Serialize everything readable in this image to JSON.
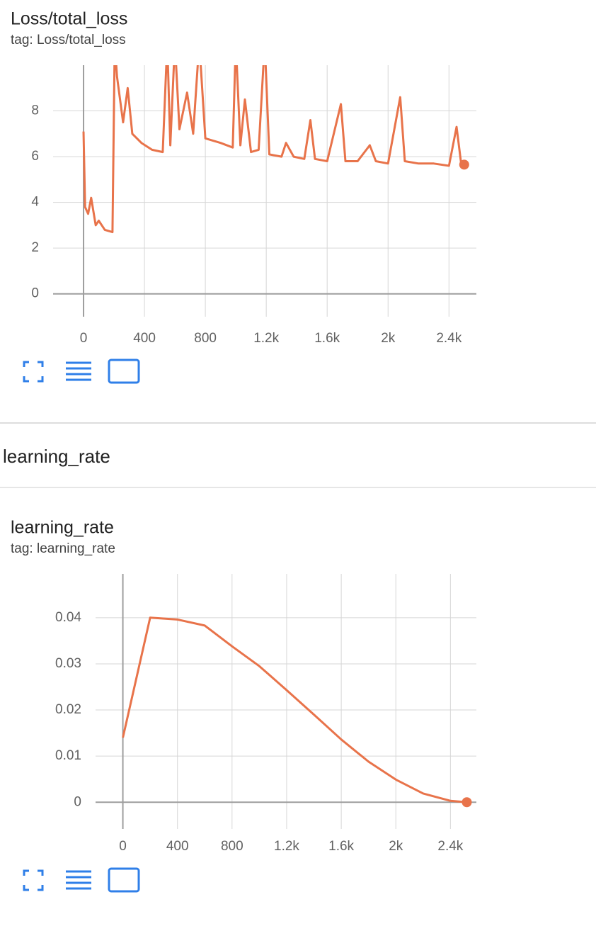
{
  "section": {
    "title": "learning_rate"
  },
  "chart_data": [
    {
      "type": "line",
      "title": "Loss/total_loss",
      "subtitle": "tag: Loss/total_loss",
      "color": "#e8734a",
      "grid": true,
      "x": [
        0,
        10,
        30,
        50,
        80,
        100,
        140,
        190,
        205,
        220,
        260,
        290,
        320,
        380,
        450,
        520,
        550,
        570,
        600,
        630,
        680,
        720,
        760,
        800,
        900,
        980,
        1000,
        1030,
        1060,
        1100,
        1150,
        1190,
        1220,
        1300,
        1330,
        1380,
        1450,
        1490,
        1520,
        1600,
        1690,
        1720,
        1800,
        1880,
        1920,
        2000,
        2080,
        2110,
        2200,
        2300,
        2400,
        2450,
        2480,
        2500
      ],
      "values": [
        7.1,
        3.8,
        3.5,
        4.2,
        3.0,
        3.2,
        2.8,
        2.7,
        11,
        9.5,
        7.5,
        9.0,
        7.0,
        6.6,
        6.3,
        6.2,
        11,
        6.5,
        11,
        7.2,
        8.8,
        7.0,
        11,
        6.8,
        6.6,
        6.4,
        11,
        6.5,
        8.5,
        6.2,
        6.3,
        11,
        6.1,
        6.0,
        6.6,
        6.0,
        5.9,
        7.6,
        5.9,
        5.8,
        8.3,
        5.8,
        5.8,
        6.5,
        5.8,
        5.7,
        8.6,
        5.8,
        5.7,
        5.7,
        5.6,
        7.3,
        5.7,
        5.65
      ],
      "xlim": [
        -200,
        2580
      ],
      "ylim": [
        -1,
        10
      ],
      "xticks": [
        0,
        400,
        800,
        {
          "value": 1200,
          "label": "1.2k"
        },
        {
          "value": 1600,
          "label": "1.6k"
        },
        {
          "value": 2000,
          "label": "2k"
        },
        {
          "value": 2400,
          "label": "2.4k"
        }
      ],
      "yticks": [
        0,
        2,
        4,
        6,
        8
      ]
    },
    {
      "type": "line",
      "title": "learning_rate",
      "subtitle": "tag: learning_rate",
      "color": "#e8734a",
      "grid": true,
      "x": [
        0,
        200,
        400,
        600,
        800,
        1000,
        1200,
        1400,
        1600,
        1800,
        2000,
        2200,
        2400,
        2520
      ],
      "values": [
        0.014,
        0.04,
        0.0396,
        0.0383,
        0.0338,
        0.0295,
        0.0243,
        0.019,
        0.0136,
        0.0088,
        0.0049,
        0.0019,
        0.0003,
        0
      ],
      "xlim": [
        -200,
        2590
      ],
      "ylim": [
        -0.0058,
        0.0495
      ],
      "xticks": [
        0,
        400,
        800,
        {
          "value": 1200,
          "label": "1.2k"
        },
        {
          "value": 1600,
          "label": "1.6k"
        },
        {
          "value": 2000,
          "label": "2k"
        },
        {
          "value": 2400,
          "label": "2.4k"
        }
      ],
      "yticks": [
        0,
        0.01,
        0.02,
        0.03,
        0.04
      ]
    }
  ]
}
